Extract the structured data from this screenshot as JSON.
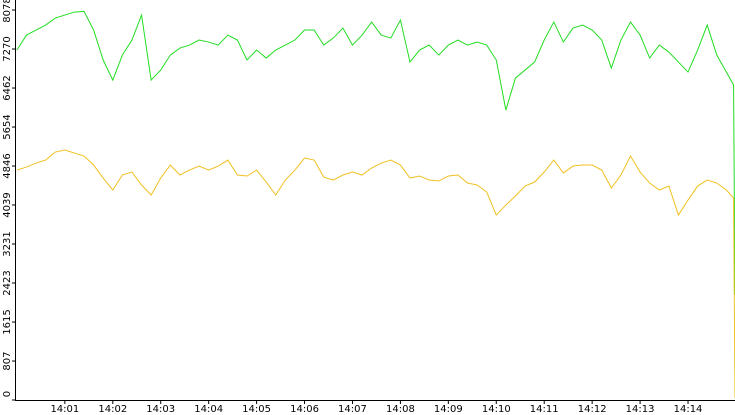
{
  "chart_data": {
    "type": "line",
    "x": [
      0,
      0.2,
      0.4,
      0.6,
      0.8,
      1,
      1.2,
      1.4,
      1.6,
      1.8,
      2,
      2.2,
      2.4,
      2.6,
      2.8,
      3,
      3.2,
      3.4,
      3.6,
      3.8,
      4,
      4.2,
      4.4,
      4.6,
      4.8,
      5,
      5.2,
      5.4,
      5.6,
      5.8,
      6,
      6.2,
      6.4,
      6.6,
      6.8,
      7,
      7.2,
      7.4,
      7.6,
      7.8,
      8,
      8.2,
      8.4,
      8.6,
      8.8,
      9,
      9.2,
      9.4,
      9.6,
      9.8,
      10,
      10.2,
      10.4,
      10.6,
      10.8,
      11,
      11.2,
      11.4,
      11.6,
      11.8,
      12,
      12.2,
      12.4,
      12.6,
      12.8,
      13,
      13.2,
      13.4,
      13.6,
      13.8,
      14,
      14.2,
      14.4,
      14.6,
      14.8,
      14.95,
      14.98
    ],
    "series": [
      {
        "color": "#22dd22",
        "values": [
          7249,
          7559,
          7663,
          7766,
          7911,
          7973,
          8035,
          8050,
          7663,
          7042,
          6627,
          7145,
          7456,
          7973,
          6627,
          6834,
          7145,
          7290,
          7352,
          7456,
          7414,
          7352,
          7559,
          7456,
          7042,
          7249,
          7083,
          7249,
          7352,
          7456,
          7663,
          7663,
          7352,
          7497,
          7704,
          7352,
          7559,
          7828,
          7559,
          7497,
          7870,
          7000,
          7249,
          7352,
          7145,
          7352,
          7456,
          7352,
          7414,
          7352,
          7042,
          6006,
          6668,
          6834,
          7000,
          7456,
          7828,
          7414,
          7704,
          7766,
          7663,
          7456,
          6875,
          7456,
          7828,
          7559,
          7083,
          7352,
          7207,
          7000,
          6793,
          7249,
          7766,
          7145,
          6793,
          6524,
          2175
        ]
      },
      {
        "color": "#f0c020",
        "values": [
          4763,
          4825,
          4908,
          4970,
          5136,
          5178,
          5115,
          5053,
          4867,
          4598,
          4349,
          4660,
          4722,
          4453,
          4246,
          4598,
          4867,
          4660,
          4763,
          4846,
          4763,
          4846,
          4970,
          4660,
          4639,
          4763,
          4515,
          4246,
          4556,
          4763,
          5012,
          4970,
          4618,
          4556,
          4660,
          4722,
          4660,
          4805,
          4908,
          4970,
          4867,
          4598,
          4639,
          4556,
          4536,
          4639,
          4660,
          4494,
          4453,
          4308,
          3831,
          4038,
          4225,
          4432,
          4515,
          4722,
          4970,
          4701,
          4846,
          4867,
          4867,
          4763,
          4391,
          4660,
          5053,
          4722,
          4494,
          4349,
          4432,
          3831,
          4142,
          4432,
          4556,
          4494,
          4349,
          4183,
          41
        ]
      }
    ],
    "xlim": [
      -0.04,
      14.98
    ],
    "xticks": [
      {
        "value": 1,
        "label": "14:01"
      },
      {
        "value": 2,
        "label": "14:02"
      },
      {
        "value": 3,
        "label": "14:03"
      },
      {
        "value": 4,
        "label": "14:04"
      },
      {
        "value": 5,
        "label": "14:05"
      },
      {
        "value": 6,
        "label": "14:06"
      },
      {
        "value": 7,
        "label": "14:07"
      },
      {
        "value": 8,
        "label": "14:08"
      },
      {
        "value": 9,
        "label": "14:09"
      },
      {
        "value": 10,
        "label": "14:10"
      },
      {
        "value": 11,
        "label": "14:11"
      },
      {
        "value": 12,
        "label": "14:12"
      },
      {
        "value": 13,
        "label": "14:13"
      },
      {
        "value": 14,
        "label": "14:14"
      }
    ],
    "ylim": [
      0,
      8078
    ],
    "yticks": [
      0,
      807,
      1615,
      2423,
      3231,
      4039,
      4846,
      5654,
      6462,
      7270,
      8078
    ]
  }
}
